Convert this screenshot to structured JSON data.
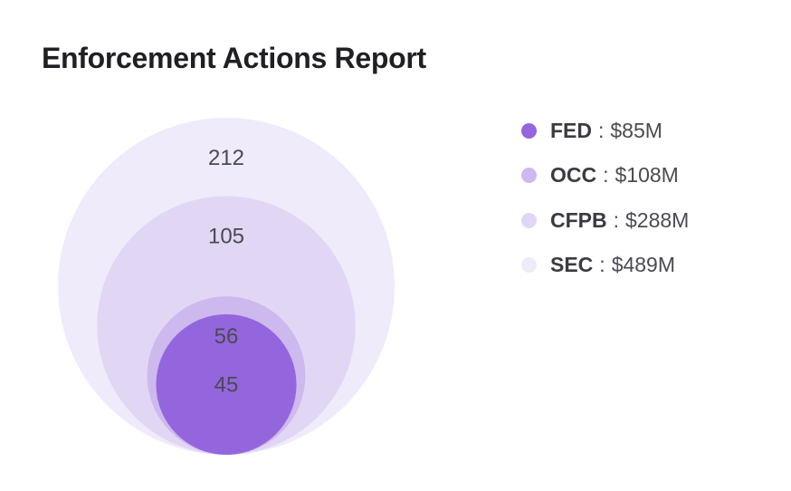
{
  "chart_data": {
    "type": "nested-bubble",
    "title": "Enforcement Actions Report",
    "series": [
      {
        "name": "SEC",
        "count": 212,
        "amount_label": "$489M",
        "amount": 489,
        "color": "#efebfb"
      },
      {
        "name": "CFPB",
        "count": 105,
        "amount_label": "$288M",
        "amount": 288,
        "color": "#e2d6f5"
      },
      {
        "name": "OCC",
        "count": 56,
        "amount_label": "$108M",
        "amount": 108,
        "color": "#cdb9ee"
      },
      {
        "name": "FED",
        "count": 45,
        "amount_label": "$85M",
        "amount": 85,
        "color": "#9466dd"
      }
    ],
    "legend": {
      "position": "right",
      "order": [
        "FED",
        "OCC",
        "CFPB",
        "SEC"
      ],
      "separator": ":"
    }
  }
}
